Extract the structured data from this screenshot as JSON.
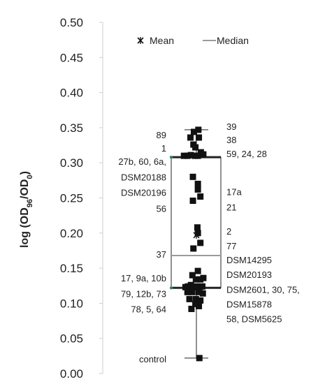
{
  "chart_data": {
    "type": "scatter",
    "subtype": "box-and-whisker with data points",
    "ylabel": "log (OD96/OD0)",
    "ylabel_parts": {
      "main": "log (OD",
      "sub1": "96",
      "mid": "/OD",
      "sub2": "0",
      "end": ")"
    },
    "ylim": [
      0.0,
      0.5
    ],
    "yticks": [
      "0.00",
      "0.05",
      "0.10",
      "0.15",
      "0.20",
      "0.25",
      "0.30",
      "0.35",
      "0.40",
      "0.45",
      "0.50"
    ],
    "grid": false,
    "legend": {
      "placement": "top-center",
      "items": [
        {
          "label": "Mean",
          "marker": "x-star"
        },
        {
          "label": "Median",
          "marker": "gray-line"
        }
      ]
    },
    "summary": {
      "mean": 0.197,
      "median": 0.168,
      "q1": 0.122,
      "q3": 0.308,
      "whisker_min": 0.022,
      "whisker_max": 0.347
    },
    "points": [
      {
        "x": 0.04,
        "y": 0.347
      },
      {
        "x": -0.05,
        "y": 0.344
      },
      {
        "x": -0.12,
        "y": 0.336
      },
      {
        "x": 0.05,
        "y": 0.336
      },
      {
        "x": -0.06,
        "y": 0.326
      },
      {
        "x": -0.02,
        "y": 0.322
      },
      {
        "x": 0.09,
        "y": 0.315
      },
      {
        "x": -0.25,
        "y": 0.31
      },
      {
        "x": -0.18,
        "y": 0.31
      },
      {
        "x": -0.11,
        "y": 0.311
      },
      {
        "x": -0.03,
        "y": 0.31
      },
      {
        "x": 0.03,
        "y": 0.31
      },
      {
        "x": 0.14,
        "y": 0.312
      },
      {
        "x": -0.07,
        "y": 0.28
      },
      {
        "x": 0.03,
        "y": 0.27
      },
      {
        "x": 0.03,
        "y": 0.262
      },
      {
        "x": 0.08,
        "y": 0.252
      },
      {
        "x": -0.07,
        "y": 0.246
      },
      {
        "x": 0.02,
        "y": 0.208
      },
      {
        "x": 0.03,
        "y": 0.2
      },
      {
        "x": 0.08,
        "y": 0.186
      },
      {
        "x": -0.06,
        "y": 0.178
      },
      {
        "x": 0.03,
        "y": 0.146
      },
      {
        "x": -0.08,
        "y": 0.14
      },
      {
        "x": -0.01,
        "y": 0.134
      },
      {
        "x": 0.08,
        "y": 0.134
      },
      {
        "x": 0.14,
        "y": 0.136
      },
      {
        "x": -0.22,
        "y": 0.123
      },
      {
        "x": -0.17,
        "y": 0.124
      },
      {
        "x": -0.11,
        "y": 0.126
      },
      {
        "x": -0.06,
        "y": 0.123
      },
      {
        "x": 0.0,
        "y": 0.124
      },
      {
        "x": 0.07,
        "y": 0.123
      },
      {
        "x": 0.12,
        "y": 0.124
      },
      {
        "x": -0.18,
        "y": 0.116
      },
      {
        "x": -0.09,
        "y": 0.116
      },
      {
        "x": 0.04,
        "y": 0.116
      },
      {
        "x": 0.13,
        "y": 0.114
      },
      {
        "x": -0.14,
        "y": 0.106
      },
      {
        "x": -0.01,
        "y": 0.106
      },
      {
        "x": 0.08,
        "y": 0.104
      },
      {
        "x": -0.02,
        "y": 0.099
      },
      {
        "x": 0.05,
        "y": 0.096
      },
      {
        "x": -0.1,
        "y": 0.092
      },
      {
        "x": 0.06,
        "y": 0.022
      }
    ],
    "annotations_left": [
      {
        "text": "89",
        "y": 0.34
      },
      {
        "text": "1",
        "y": 0.321
      },
      {
        "text": "27b, 60, 6a,",
        "y": 0.302
      },
      {
        "text": "DSM20188",
        "y": 0.28
      },
      {
        "text": "DSM20196",
        "y": 0.258
      },
      {
        "text": "56",
        "y": 0.235
      },
      {
        "text": "37",
        "y": 0.17
      },
      {
        "text": "17, 9a, 10b",
        "y": 0.136
      },
      {
        "text": "79, 12b, 73",
        "y": 0.114
      },
      {
        "text": "78, 5, 64",
        "y": 0.092
      },
      {
        "text": "control",
        "y": 0.021
      }
    ],
    "annotations_right": [
      {
        "text": "39",
        "y": 0.352
      },
      {
        "text": "38",
        "y": 0.333
      },
      {
        "text": "59, 24, 28",
        "y": 0.313
      },
      {
        "text": "17a",
        "y": 0.259
      },
      {
        "text": "21",
        "y": 0.237
      },
      {
        "text": "2",
        "y": 0.203
      },
      {
        "text": "77",
        "y": 0.182
      },
      {
        "text": "DSM14295",
        "y": 0.162
      },
      {
        "text": "DSM20193",
        "y": 0.141
      },
      {
        "text": "DSM2601, 30, 75,",
        "y": 0.12
      },
      {
        "text": "DSM15878",
        "y": 0.099
      },
      {
        "text": "58, DSM5625",
        "y": 0.078
      }
    ],
    "colors": {
      "points": "#111111",
      "box": "#222222",
      "median": "#9a9a9a",
      "axis": "#cfcfcf",
      "quartile_marker": "#2e8b57"
    }
  }
}
